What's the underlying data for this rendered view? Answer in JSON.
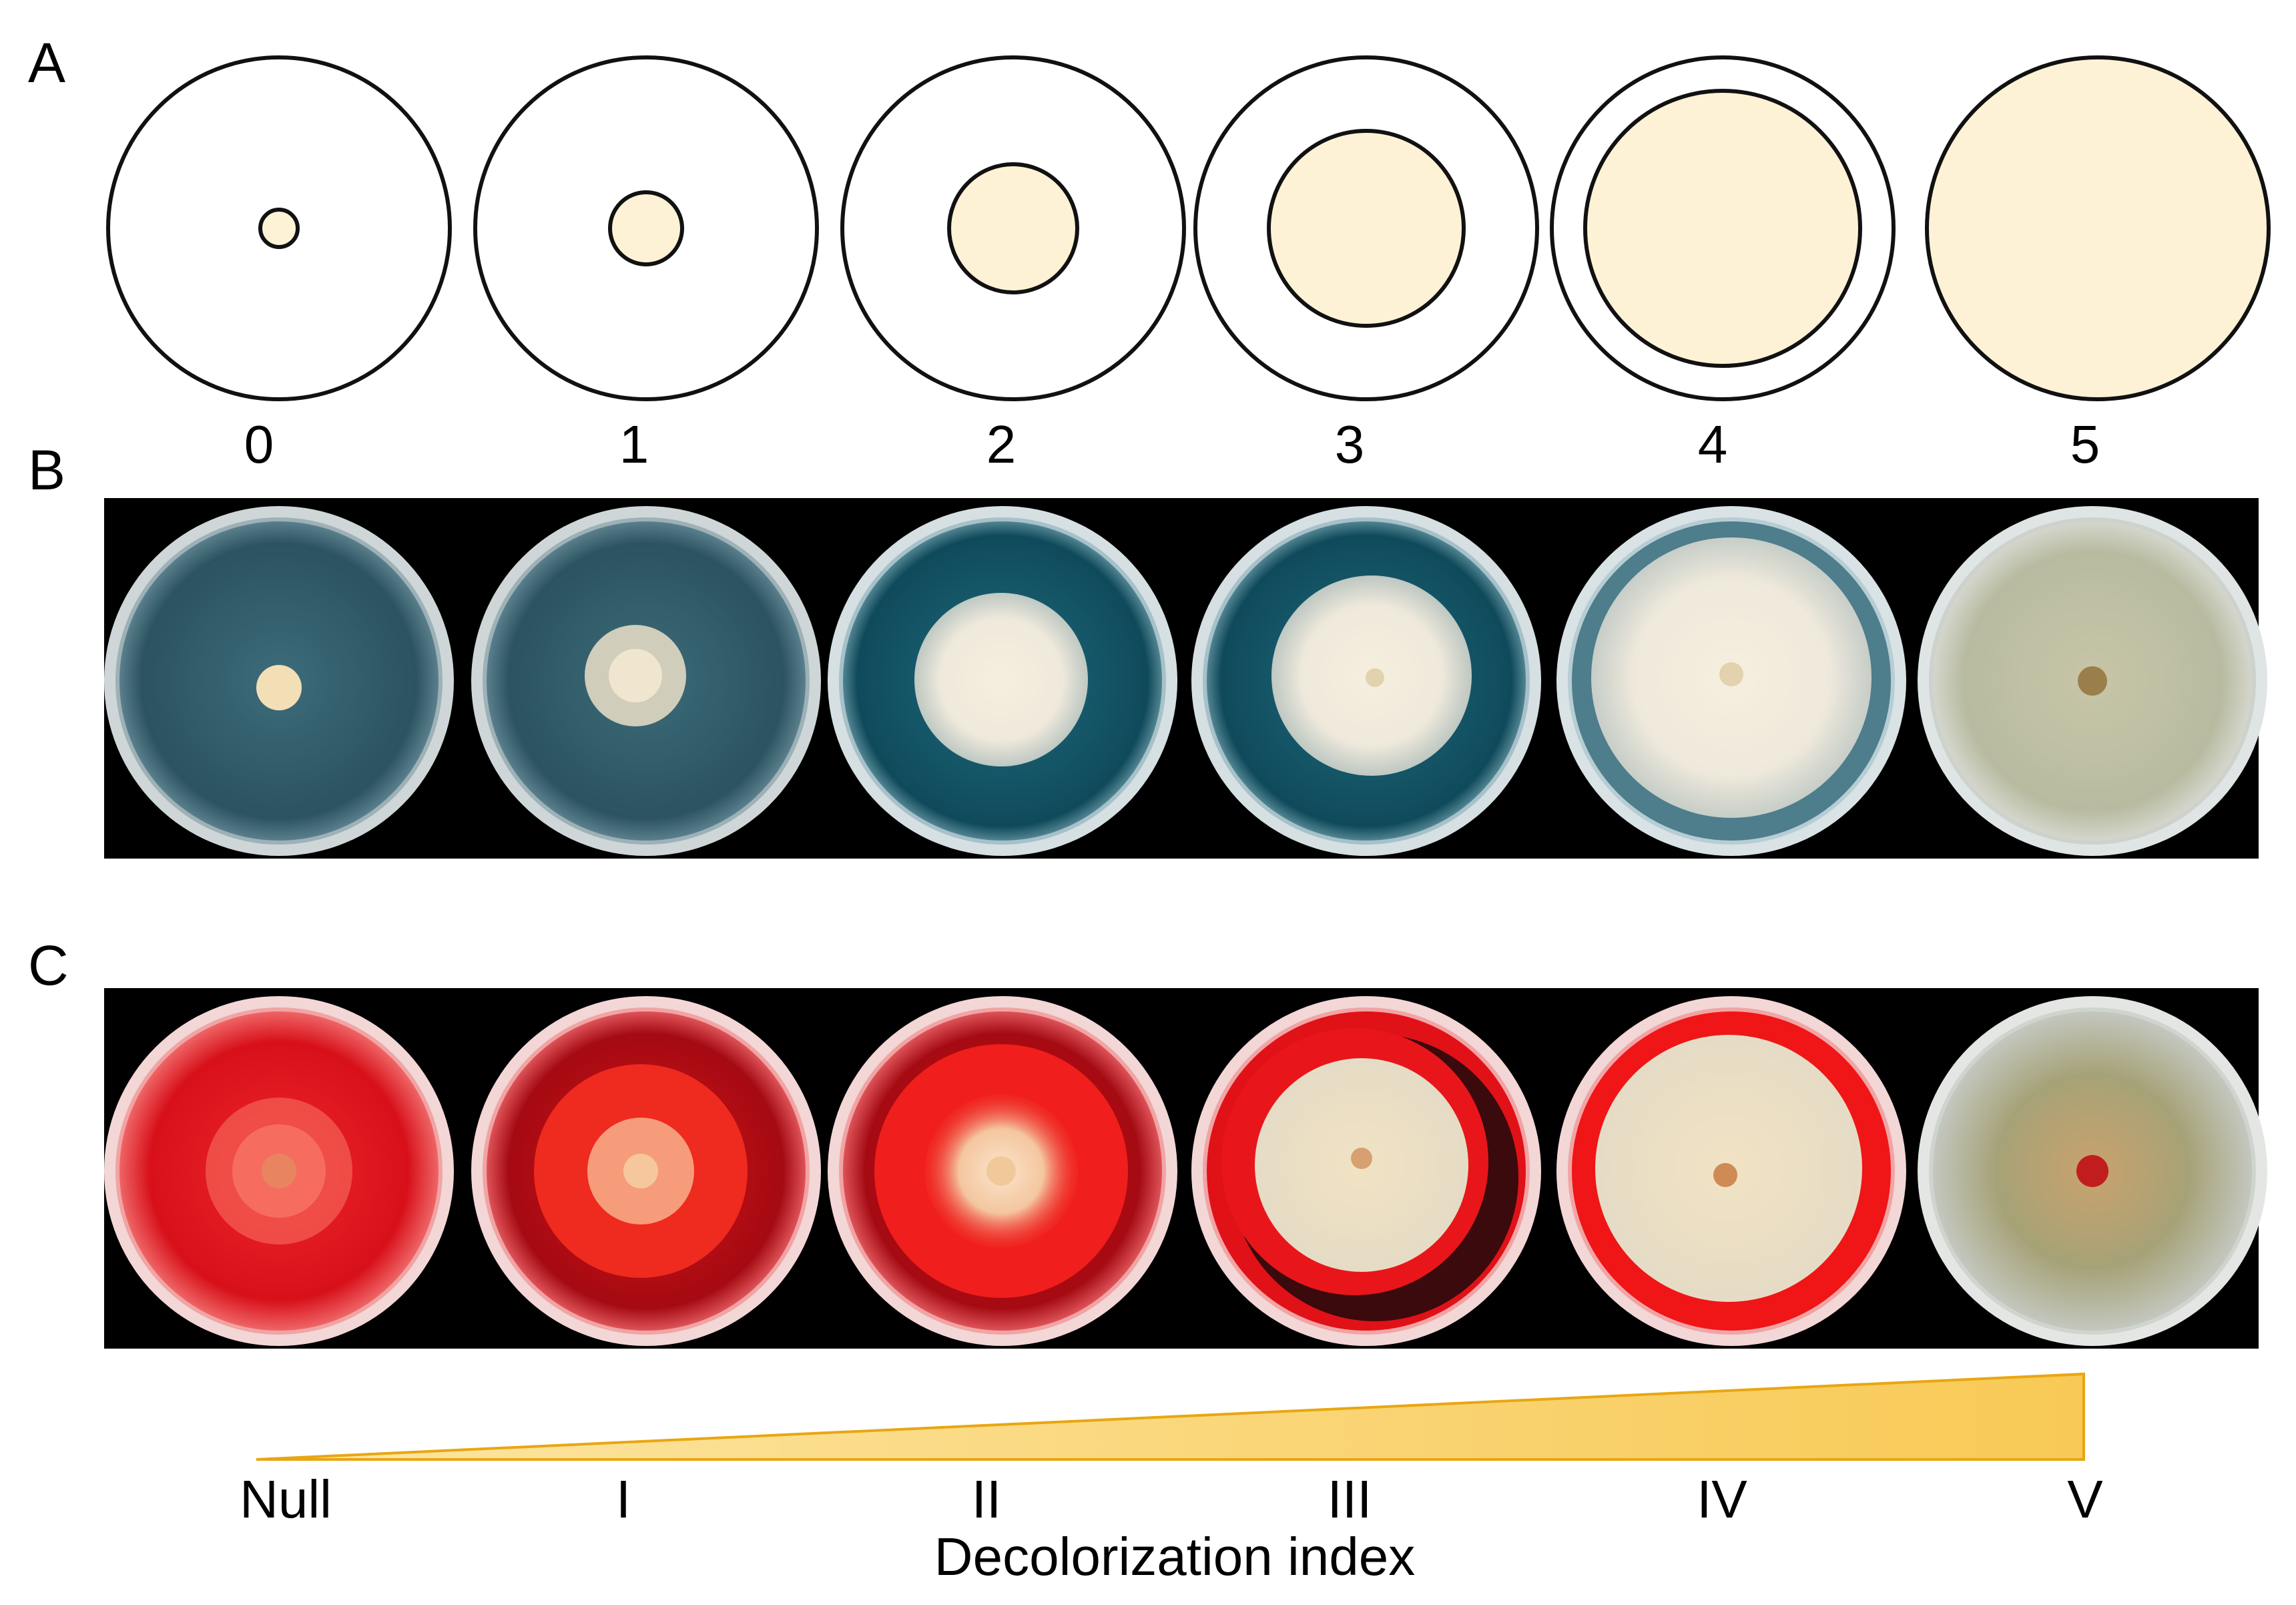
{
  "panel_letters": {
    "a": "A",
    "b": "B",
    "c": "C"
  },
  "scale_labels": [
    "0",
    "1",
    "2",
    "3",
    "4",
    "5"
  ],
  "index_labels": [
    "Null",
    "I",
    "II",
    "III",
    "IV",
    "V"
  ],
  "index_title": "Decolorization index",
  "colors": {
    "colony_fill": "#fef2d6",
    "outline": "#111111",
    "photo_background": "#000000",
    "blue_medium": "#2e5866",
    "red_medium": "#d8121a",
    "wedge_fill": "#f9cf63",
    "wedge_edge": "#e8a612"
  }
}
